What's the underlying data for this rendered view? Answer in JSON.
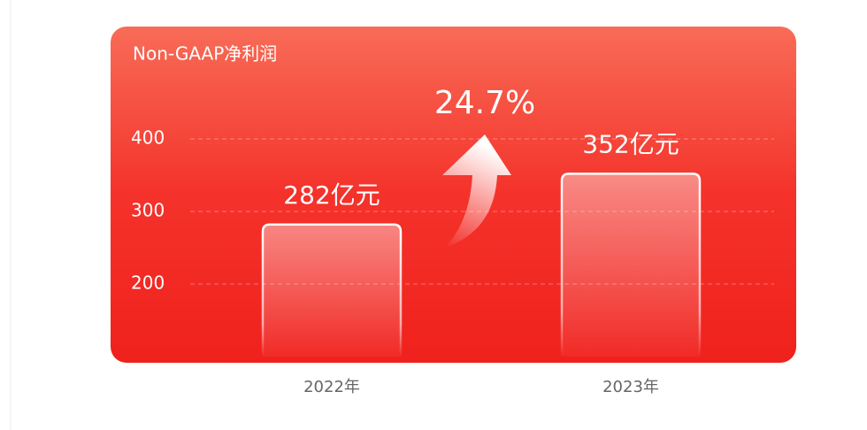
{
  "chart_data": {
    "type": "bar",
    "title": "Non-GAAP净利润",
    "categories": [
      "2022年",
      "2023年"
    ],
    "values": [
      282,
      352
    ],
    "value_labels": [
      "282亿元",
      "352亿元"
    ],
    "annotation": "24.7%",
    "color": "#ffffff",
    "ylim": [
      100,
      550
    ],
    "yticks": [
      200,
      300,
      400
    ],
    "grid": true
  }
}
